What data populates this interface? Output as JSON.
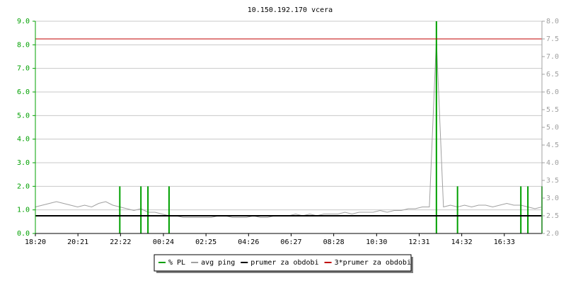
{
  "chart_data": {
    "type": "line",
    "title": "10.150.192.170 vcera",
    "x": [
      "18:20",
      "18:40",
      "19:00",
      "19:20",
      "19:40",
      "20:00",
      "20:20",
      "20:40",
      "21:00",
      "21:20",
      "21:40",
      "22:00",
      "22:20",
      "22:40",
      "23:00",
      "23:20",
      "23:40",
      "00:00",
      "00:20",
      "00:40",
      "01:00",
      "01:20",
      "01:40",
      "02:00",
      "02:20",
      "02:40",
      "03:00",
      "03:20",
      "03:40",
      "04:00",
      "04:20",
      "04:40",
      "05:00",
      "05:20",
      "05:40",
      "06:00",
      "06:20",
      "06:40",
      "07:00",
      "07:20",
      "07:40",
      "08:00",
      "08:20",
      "08:40",
      "09:00",
      "09:20",
      "09:40",
      "10:00",
      "10:20",
      "10:40",
      "11:00",
      "11:20",
      "11:40",
      "12:00",
      "12:20",
      "12:40",
      "13:00",
      "13:20",
      "13:40",
      "14:00",
      "14:20",
      "14:40",
      "15:00",
      "15:20",
      "15:40",
      "16:00",
      "16:20",
      "16:40",
      "17:00",
      "17:20",
      "17:40",
      "18:00",
      "18:20"
    ],
    "xticks": [
      "18:20",
      "20:21",
      "22:22",
      "00:24",
      "02:25",
      "04:26",
      "06:27",
      "08:28",
      "10:30",
      "12:31",
      "14:32",
      "16:33"
    ],
    "ylim": [
      0,
      9
    ],
    "yticks": [
      {
        "value": 0,
        "label": "0.0"
      },
      {
        "value": 1,
        "label": "1.0"
      },
      {
        "value": 2,
        "label": "2.0"
      },
      {
        "value": 3,
        "label": "3.0"
      },
      {
        "value": 4,
        "label": "4.0"
      },
      {
        "value": 5,
        "label": "5.0"
      },
      {
        "value": 6,
        "label": "6.0"
      },
      {
        "value": 7,
        "label": "7.0"
      },
      {
        "value": 8,
        "label": "8.0"
      },
      {
        "value": 9,
        "label": "9.0"
      }
    ],
    "y2lim": [
      2,
      8
    ],
    "y2ticks": [
      {
        "value": 2,
        "label": "2.0"
      },
      {
        "value": 2.5,
        "label": "2.5"
      },
      {
        "value": 3,
        "label": "3.0"
      },
      {
        "value": 3.5,
        "label": "3.5"
      },
      {
        "value": 4,
        "label": "4.0"
      },
      {
        "value": 4.5,
        "label": "4.5"
      },
      {
        "value": 5,
        "label": "5.0"
      },
      {
        "value": 5.5,
        "label": "5.5"
      },
      {
        "value": 6,
        "label": "6.0"
      },
      {
        "value": 6.5,
        "label": "6.5"
      },
      {
        "value": 7,
        "label": "7.0"
      },
      {
        "value": 7.5,
        "label": "7.5"
      },
      {
        "value": 8,
        "label": "8.0"
      }
    ],
    "grid": true,
    "series": [
      {
        "name": "% PL",
        "color": "#00a000",
        "style": "spikes",
        "values": [
          0,
          0,
          0,
          0,
          0,
          0,
          0,
          0,
          0,
          0,
          0,
          0,
          2,
          0,
          0,
          2,
          2,
          0,
          0,
          2,
          0,
          0,
          0,
          0,
          0,
          0,
          0,
          0,
          0,
          0,
          0,
          0,
          0,
          0,
          0,
          0,
          0,
          0,
          0,
          0,
          0,
          0,
          0,
          0,
          0,
          0,
          0,
          0,
          0,
          0,
          0,
          0,
          0,
          0,
          0,
          0,
          0,
          9,
          0,
          0,
          2,
          0,
          0,
          0,
          0,
          0,
          0,
          0,
          0,
          2,
          2,
          0,
          2
        ]
      },
      {
        "name": "avg ping",
        "color": "#a0a0a0",
        "axis": "y2",
        "style": "line",
        "values": [
          2.75,
          2.8,
          2.85,
          2.9,
          2.85,
          2.8,
          2.75,
          2.8,
          2.75,
          2.85,
          2.9,
          2.8,
          2.75,
          2.7,
          2.65,
          2.7,
          2.6,
          2.6,
          2.55,
          2.5,
          2.5,
          2.45,
          2.45,
          2.45,
          2.45,
          2.45,
          2.5,
          2.5,
          2.45,
          2.45,
          2.45,
          2.5,
          2.45,
          2.45,
          2.5,
          2.5,
          2.5,
          2.55,
          2.5,
          2.55,
          2.5,
          2.55,
          2.55,
          2.55,
          2.6,
          2.55,
          2.6,
          2.6,
          2.6,
          2.65,
          2.6,
          2.65,
          2.65,
          2.7,
          2.7,
          2.75,
          2.75,
          7.5,
          2.75,
          2.8,
          2.75,
          2.8,
          2.75,
          2.8,
          2.8,
          2.75,
          2.8,
          2.85,
          2.8,
          2.8,
          2.75,
          2.7,
          2.75
        ]
      },
      {
        "name": "prumer za obdobi",
        "color": "#000000",
        "axis": "y2",
        "style": "hline",
        "value": 2.5
      },
      {
        "name": "3*prumer za obdobi",
        "color": "#c00000",
        "axis": "y2",
        "style": "hline",
        "value": 7.5
      }
    ]
  }
}
